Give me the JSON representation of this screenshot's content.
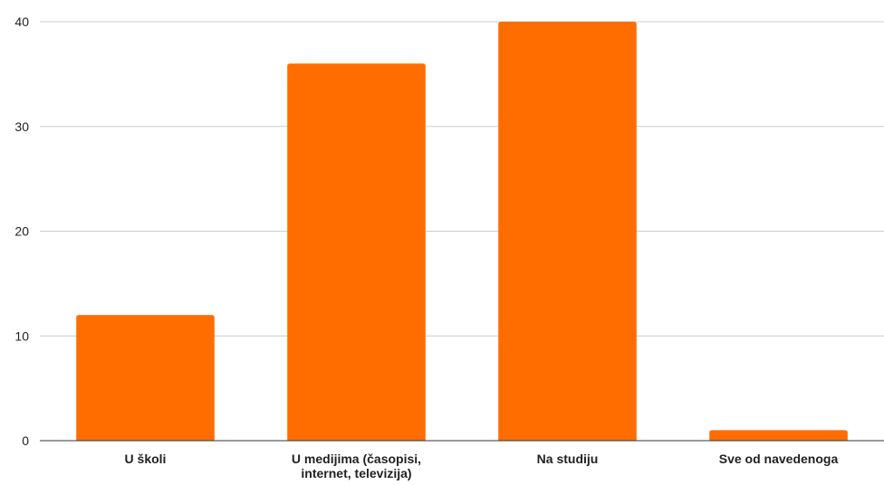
{
  "chart_data": {
    "type": "bar",
    "title": "",
    "xlabel": "",
    "ylabel": "",
    "categories": [
      [
        "U školi"
      ],
      [
        "U medijima (časopisi,",
        "internet, televizija)"
      ],
      [
        "Na studiju"
      ],
      [
        "Sve od navedenoga"
      ]
    ],
    "values": [
      12,
      36,
      40,
      1
    ],
    "ylim": [
      0,
      40
    ],
    "yticks": [
      0,
      10,
      20,
      30,
      40
    ],
    "grid": true,
    "legend": "none",
    "colors": {
      "bar": "#ff6d01",
      "grid": "#cccccc",
      "axis": "#333333"
    }
  }
}
